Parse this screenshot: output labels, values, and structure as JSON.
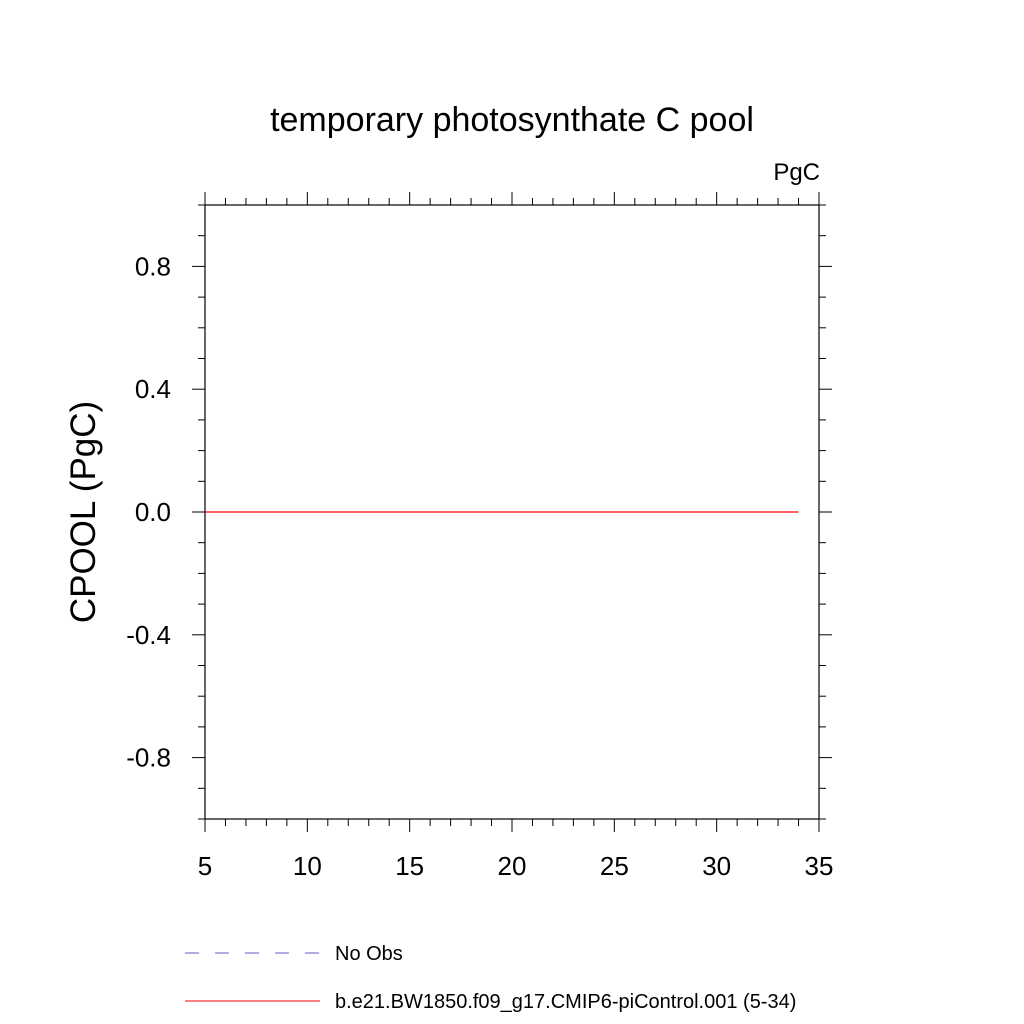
{
  "chart_data": {
    "type": "line",
    "title": "temporary photosynthate C pool",
    "units_label": "PgC",
    "xlabel": "",
    "ylabel": "CPOOL  (PgC)",
    "xlim": [
      5,
      35
    ],
    "ylim": [
      -1.0,
      1.0
    ],
    "x_ticks": [
      5,
      10,
      15,
      20,
      25,
      30,
      35
    ],
    "x_tick_labels": [
      "5",
      "10",
      "15",
      "20",
      "25",
      "30",
      "35"
    ],
    "y_ticks": [
      -0.8,
      -0.4,
      0.0,
      0.4,
      0.8
    ],
    "y_tick_labels": [
      "-0.8",
      "-0.4",
      "0.0",
      "0.4",
      "0.8"
    ],
    "grid": false,
    "legend_position": "bottom",
    "series": [
      {
        "name": "No Obs",
        "color": "#6a5acd",
        "style": "dashed",
        "x": [],
        "y": []
      },
      {
        "name": "b.e21.BW1850.f09_g17.CMIP6-piControl.001 (5-34)",
        "color": "#ff0000",
        "style": "solid",
        "x": [
          5,
          34
        ],
        "y": [
          0.0,
          0.0
        ]
      }
    ]
  }
}
